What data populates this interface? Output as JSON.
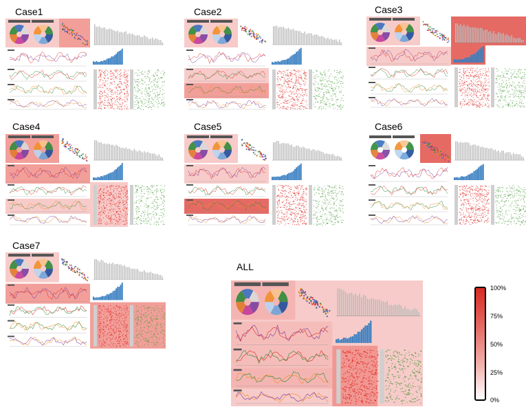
{
  "cases": [
    {
      "label": "Case1"
    },
    {
      "label": "Case2"
    },
    {
      "label": "Case3"
    },
    {
      "label": "Case4"
    },
    {
      "label": "Case5"
    },
    {
      "label": "Case6"
    },
    {
      "label": "Case7"
    },
    {
      "label": "ALL"
    }
  ],
  "legend": {
    "ticks": [
      "100%",
      "75%",
      "50%",
      "25%",
      "0%"
    ],
    "colors": {
      "low": "#ffffff",
      "high": "#d72a22"
    }
  },
  "colors": {
    "highlight_light": "#f6c2c0",
    "highlight_medium": "#f08e88",
    "highlight_strong": "#e25049",
    "bar_blue": "#3a7fc1",
    "matrix_red": "#e0302a",
    "matrix_green": "#4a9a3a"
  }
}
